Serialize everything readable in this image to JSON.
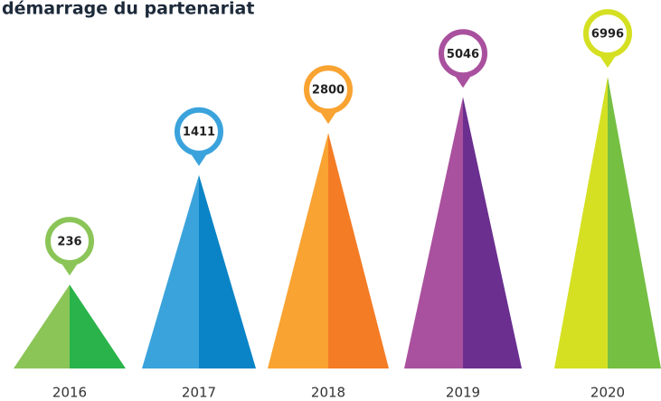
{
  "chart_data": {
    "type": "triangle",
    "title": "démarrage du partenariat",
    "categories": [
      "2016",
      "2017",
      "2018",
      "2019",
      "2020"
    ],
    "values": [
      236,
      1411,
      2800,
      5046,
      6996
    ],
    "colors": [
      [
        "#8bc558",
        "#2bb34b"
      ],
      [
        "#3ba3dc",
        "#0a84c6"
      ],
      [
        "#f9a332",
        "#f47c25"
      ],
      [
        "#a9519e",
        "#6a2f8f"
      ],
      [
        "#d5e023",
        "#75bf43"
      ]
    ],
    "log_scale": true,
    "ylim": [
      60,
      8000
    ]
  }
}
